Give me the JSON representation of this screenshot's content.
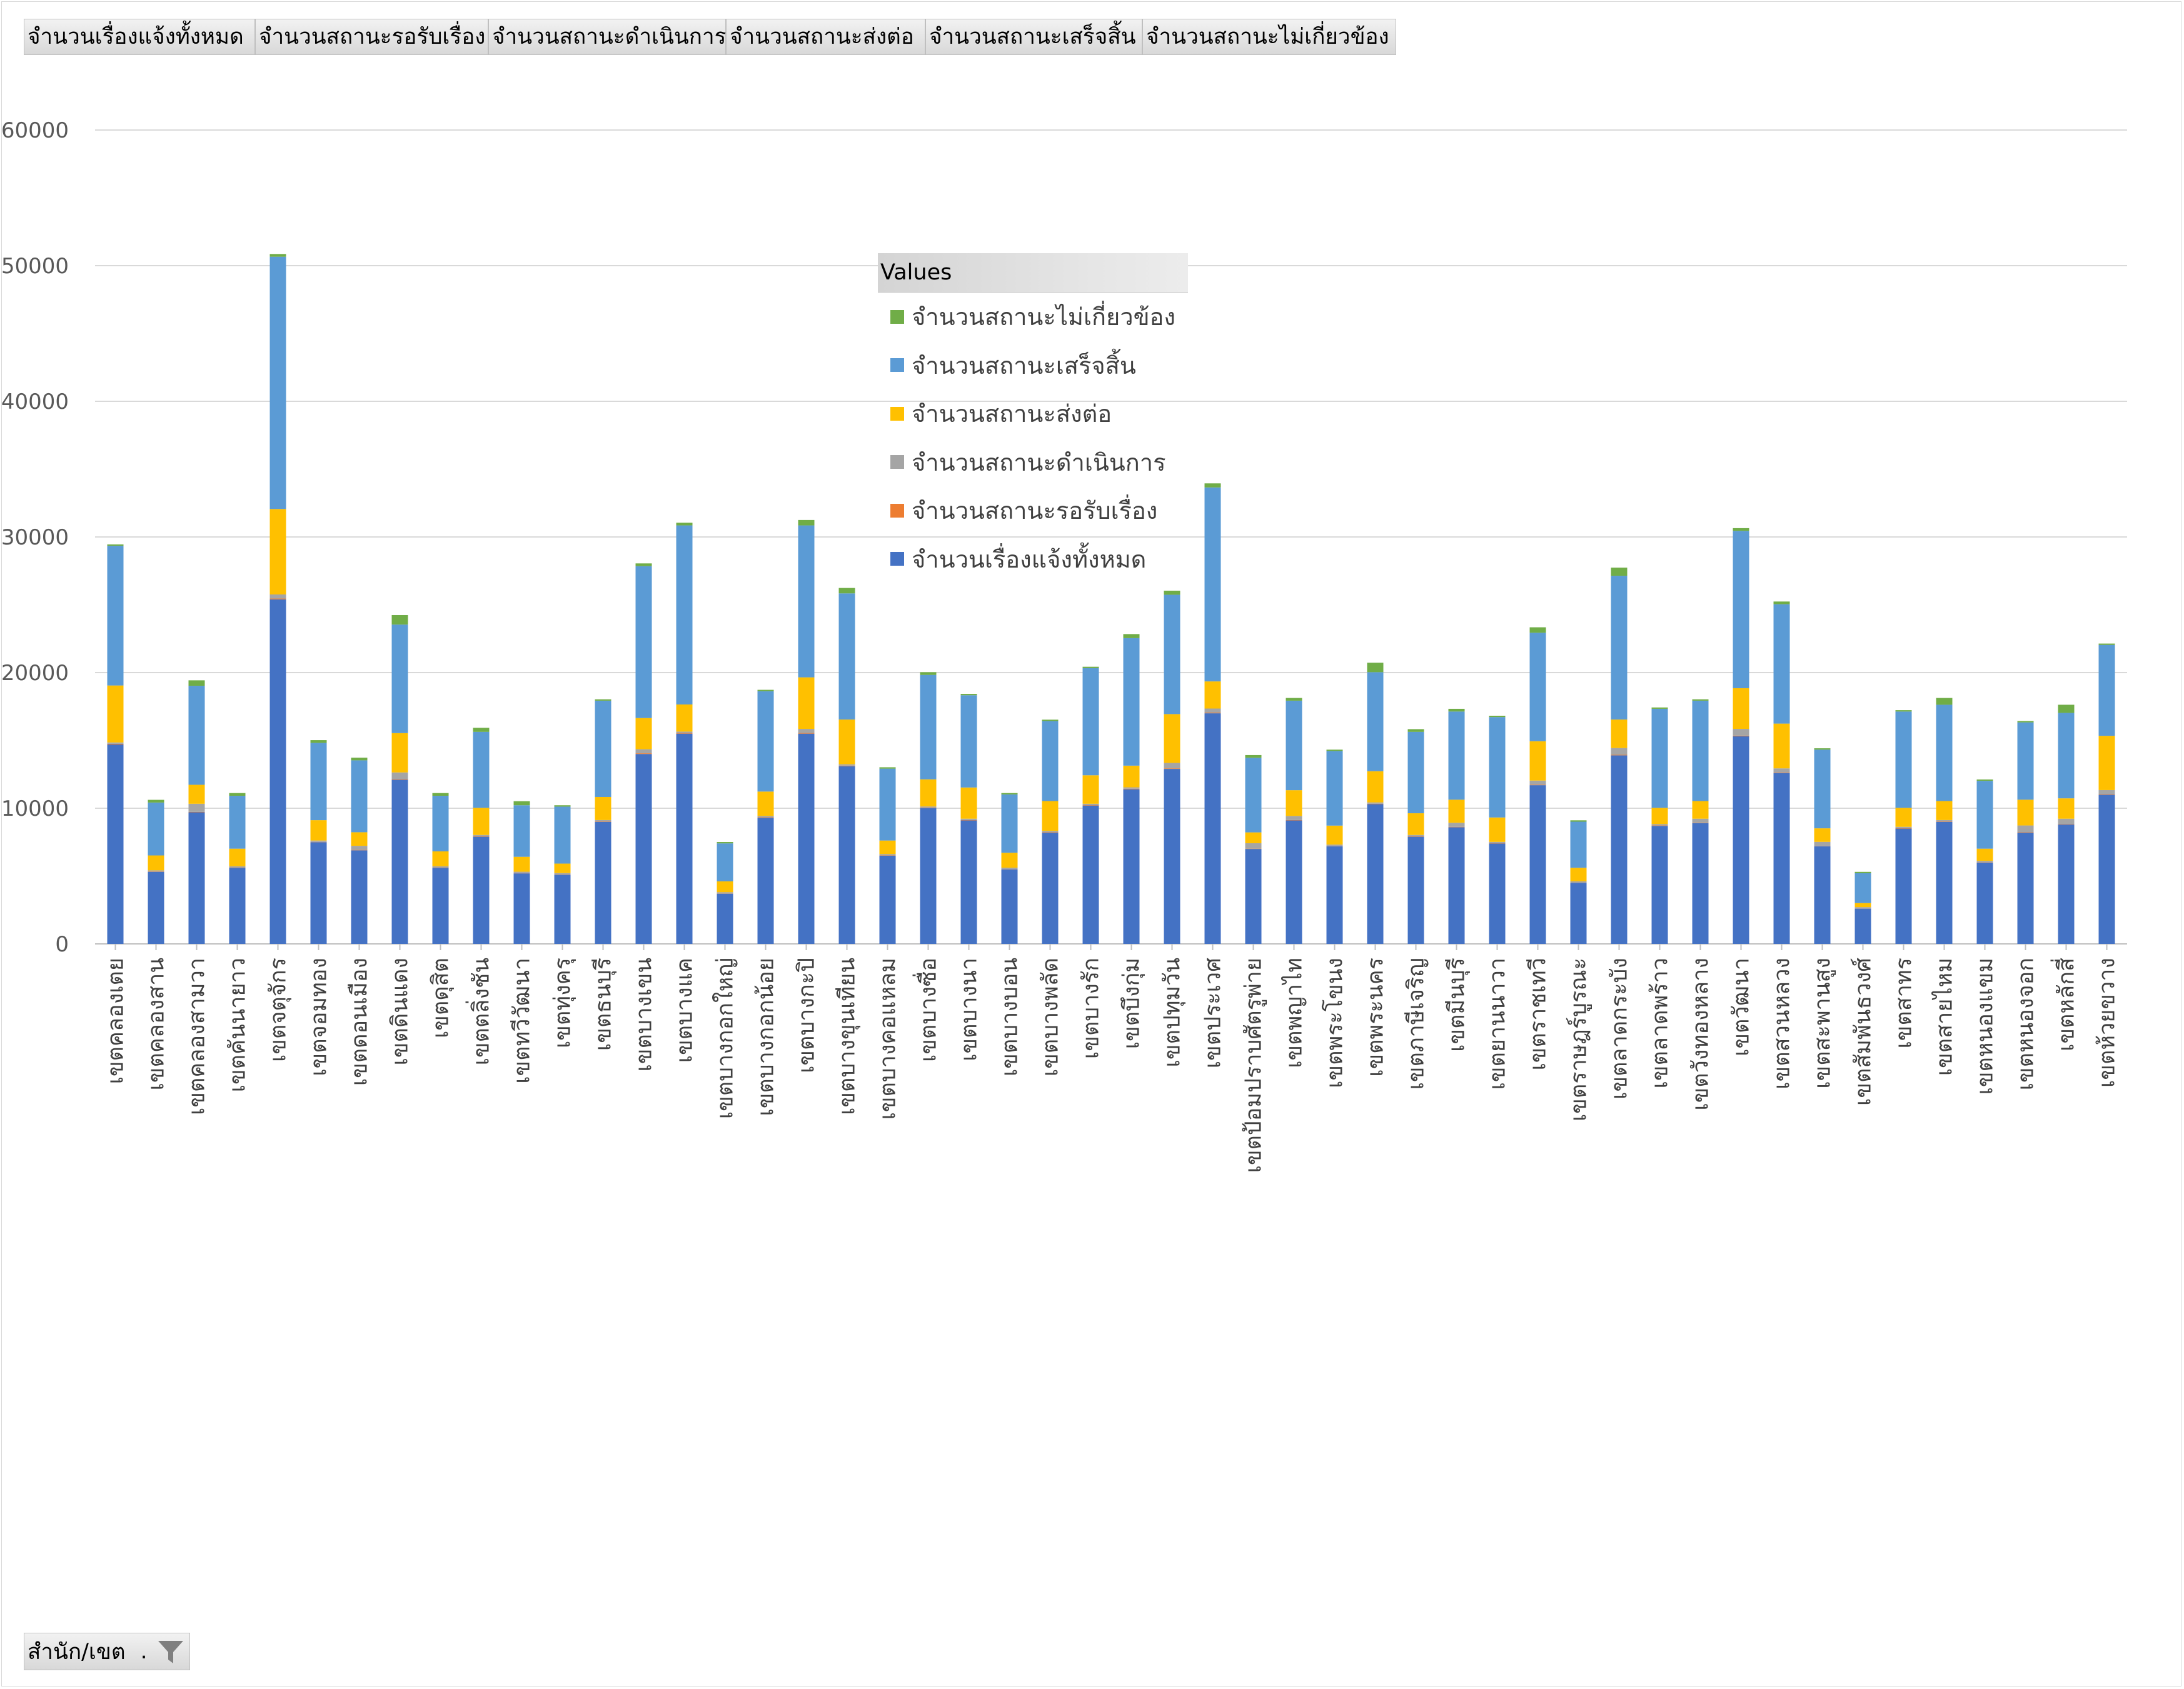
{
  "fields": [
    "จำนวนเรื่องแจ้งทั้งหมด",
    "จำนวนสถานะรอรับเรื่อง",
    "จำนวนสถานะดำเนินการ",
    "จำนวนสถานะส่งต่อ",
    "จำนวนสถานะเสร็จสิ้น",
    "จำนวนสถานะไม่เกี่ยวข้อง"
  ],
  "filter": {
    "label": "สำนัก/เขต",
    "dot": ".",
    "icon": "funnel-icon"
  },
  "legend": {
    "title": "Values",
    "items": [
      {
        "label": "จำนวนสถานะไม่เกี่ยวข้อง",
        "color": "#70ad47"
      },
      {
        "label": "จำนวนสถานะเสร็จสิ้น",
        "color": "#5b9bd5"
      },
      {
        "label": "จำนวนสถานะส่งต่อ",
        "color": "#ffc000"
      },
      {
        "label": "จำนวนสถานะดำเนินการ",
        "color": "#a5a5a5"
      },
      {
        "label": "จำนวนสถานะรอรับเรื่อง",
        "color": "#ed7d31"
      },
      {
        "label": "จำนวนเรื่องแจ้งทั้งหมด",
        "color": "#4472c4"
      }
    ]
  },
  "chart_data": {
    "type": "bar",
    "stacked": true,
    "legend_position": "inside-top-center",
    "grid": true,
    "ylim": [
      0,
      60000
    ],
    "yticks": [
      0,
      10000,
      20000,
      30000,
      40000,
      50000,
      60000
    ],
    "ytick_labels": [
      "0",
      "10000",
      "20000",
      "30000",
      "40000",
      "50000",
      "60000"
    ],
    "categories": [
      "เขตคลองเตย",
      "เขตคลองสาน",
      "เขตคลองสามวา",
      "เขตคันนายาว",
      "เขตจตุจักร",
      "เขตจอมทอง",
      "เขตดอนเมือง",
      "เขตดินแดง",
      "เขตดุสิต",
      "เขตตลิ่งชัน",
      "เขตทวีวัฒนา",
      "เขตทุ่งครุ",
      "เขตธนบุรี",
      "เขตบางเขน",
      "เขตบางแค",
      "เขตบางกอกใหญ่",
      "เขตบางกอกน้อย",
      "เขตบางกะปิ",
      "เขตบางขุนเทียน",
      "เขตบางคอแหลม",
      "เขตบางซื่อ",
      "เขตบางนา",
      "เขตบางบอน",
      "เขตบางพลัด",
      "เขตบางรัก",
      "เขตบึงกุ่ม",
      "เขตปทุมวัน",
      "เขตประเวศ",
      "เขตป้อมปราบศัตรูพ่าย",
      "เขตพญาไท",
      "เขตพระโขนง",
      "เขตพระนคร",
      "เขตภาษีเจริญ",
      "เขตมีนบุรี",
      "เขตยานนาวา",
      "เขตราชเทวี",
      "เขตราษฎร์บูรณะ",
      "เขตลาดกระบัง",
      "เขตลาดพร้าว",
      "เขตวังทองหลาง",
      "เขตวัฒนา",
      "เขตสวนหลวง",
      "เขตสะพานสูง",
      "เขตสัมพันธวงศ์",
      "เขตสาทร",
      "เขตสายไหม",
      "เขตหนองแขม",
      "เขตหนองจอก",
      "เขตหลักสี่",
      "เขตห้วยขวาง"
    ],
    "series": [
      {
        "name": "จำนวนเรื่องแจ้งทั้งหมด",
        "color": "#4472c4",
        "values": [
          14700,
          5300,
          9700,
          5600,
          25400,
          7500,
          6900,
          12100,
          5600,
          7900,
          5200,
          5100,
          9000,
          14000,
          15500,
          3700,
          9300,
          15500,
          13100,
          6500,
          10000,
          9100,
          5500,
          8200,
          10200,
          11400,
          12900,
          17000,
          7000,
          9100,
          7200,
          10300,
          7900,
          8600,
          7400,
          11700,
          4500,
          13900,
          8700,
          8900,
          15300,
          12600,
          7200,
          2600,
          8500,
          9000,
          6000,
          8200,
          8800,
          11000
        ]
      },
      {
        "name": "จำนวนสถานะรอรับเรื่อง",
        "color": "#ed7d31",
        "values": [
          50,
          20,
          30,
          20,
          60,
          20,
          30,
          40,
          20,
          30,
          20,
          20,
          30,
          50,
          50,
          10,
          30,
          50,
          40,
          20,
          30,
          30,
          20,
          30,
          30,
          40,
          40,
          50,
          20,
          30,
          20,
          30,
          30,
          30,
          20,
          40,
          10,
          40,
          30,
          30,
          50,
          40,
          20,
          10,
          30,
          30,
          20,
          30,
          30,
          40
        ]
      },
      {
        "name": "จำนวนสถานะดำเนินการ",
        "color": "#a5a5a5",
        "values": [
          100,
          100,
          600,
          100,
          300,
          100,
          300,
          500,
          100,
          100,
          100,
          100,
          100,
          300,
          100,
          100,
          100,
          300,
          100,
          100,
          100,
          100,
          100,
          100,
          100,
          100,
          400,
          300,
          400,
          300,
          100,
          100,
          100,
          300,
          100,
          300,
          100,
          500,
          100,
          300,
          500,
          300,
          300,
          100,
          100,
          100,
          100,
          500,
          400,
          300
        ]
      },
      {
        "name": "จำนวนสถานะส่งต่อ",
        "color": "#ffc000",
        "values": [
          4200,
          1100,
          1400,
          1300,
          6300,
          1500,
          1000,
          2900,
          1100,
          2000,
          1100,
          700,
          1700,
          2300,
          2000,
          800,
          1800,
          3800,
          3300,
          1000,
          2000,
          2300,
          1100,
          2200,
          2100,
          1600,
          3600,
          2000,
          800,
          1900,
          1400,
          2300,
          1600,
          1700,
          1800,
          2900,
          1000,
          2100,
          1200,
          1300,
          3000,
          3300,
          1000,
          300,
          1400,
          1400,
          900,
          1900,
          1500,
          4000
        ]
      },
      {
        "name": "จำนวนสถานะเสร็จสิ้น",
        "color": "#5b9bd5",
        "values": [
          10300,
          3900,
          7300,
          3900,
          18600,
          5700,
          5300,
          8000,
          4100,
          5600,
          3800,
          4200,
          7100,
          11200,
          13200,
          2800,
          7400,
          11200,
          9300,
          5300,
          7700,
          6800,
          4300,
          5900,
          7900,
          9400,
          8800,
          14300,
          5500,
          6600,
          5500,
          7300,
          6000,
          6500,
          7400,
          8000,
          3400,
          10600,
          7300,
          7400,
          11600,
          8800,
          5800,
          2200,
          7100,
          7100,
          5000,
          5700,
          6300,
          6700
        ]
      },
      {
        "name": "จำนวนสถานะไม่เกี่ยวข้อง",
        "color": "#70ad47",
        "values": [
          100,
          200,
          400,
          200,
          200,
          200,
          200,
          700,
          200,
          300,
          300,
          100,
          100,
          200,
          200,
          100,
          100,
          400,
          400,
          100,
          200,
          100,
          100,
          100,
          100,
          300,
          300,
          300,
          200,
          200,
          100,
          700,
          200,
          200,
          100,
          400,
          100,
          600,
          100,
          100,
          200,
          200,
          100,
          100,
          100,
          500,
          100,
          100,
          600,
          100
        ]
      }
    ]
  }
}
